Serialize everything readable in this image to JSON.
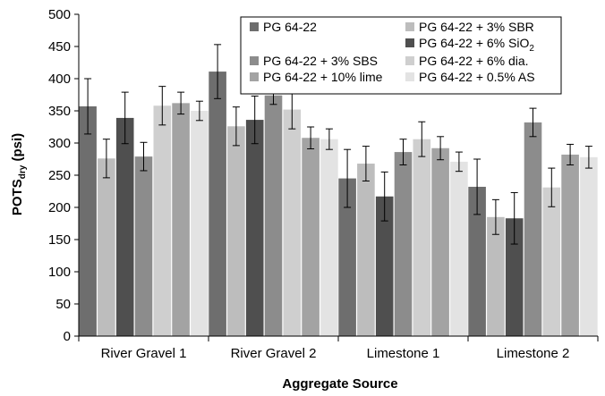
{
  "chart_data": {
    "type": "bar",
    "title": "",
    "xlabel": "Aggregate Source",
    "ylabel": "POTS",
    "ylabel_sub": "dry",
    "ylabel_unit": " (psi)",
    "ylim": [
      0,
      500
    ],
    "yticks": [
      0,
      50,
      100,
      150,
      200,
      250,
      300,
      350,
      400,
      450,
      500
    ],
    "grid": false,
    "legend_position": "top-right",
    "categories": [
      "River Gravel 1",
      "River Gravel 2",
      "Limestone 1",
      "Limestone 2"
    ],
    "series": [
      {
        "name": "PG 64-22",
        "name_main": "PG 64-22",
        "name_sub": "",
        "name_tail": "",
        "color": "#6e6e6e",
        "values": [
          357,
          411,
          245,
          232
        ],
        "error": [
          43,
          42,
          45,
          43
        ]
      },
      {
        "name": "PG 64-22 + 3% SBR",
        "name_main": "PG 64-22 + 3% SBR",
        "name_sub": "",
        "name_tail": "",
        "color": "#bdbdbd",
        "values": [
          276,
          326,
          268,
          185
        ],
        "error": [
          30,
          30,
          27,
          27
        ]
      },
      {
        "name": "PG 64-22 + 6% SiO2",
        "name_main": "PG 64-22 + 6% SiO",
        "name_sub": "2",
        "name_tail": "",
        "color": "#4f4f4f",
        "values": [
          339,
          336,
          217,
          183
        ],
        "error": [
          40,
          37,
          38,
          40
        ]
      },
      {
        "name": "PG 64-22 + 3% SBS",
        "name_main": "PG 64-22 + 3% SBS",
        "name_sub": "",
        "name_tail": "",
        "color": "#8c8c8c",
        "values": [
          279,
          374,
          286,
          332
        ],
        "error": [
          22,
          14,
          20,
          22
        ]
      },
      {
        "name": "PG 64-22 + 6% dia.",
        "name_main": "PG 64-22 + 6% dia.",
        "name_sub": "",
        "name_tail": "",
        "color": "#cfcfcf",
        "values": [
          358,
          352,
          306,
          231
        ],
        "error": [
          30,
          30,
          27,
          30
        ]
      },
      {
        "name": "PG 64-22 + 10% lime",
        "name_main": "PG 64-22 + 10% lime",
        "name_sub": "",
        "name_tail": "",
        "color": "#a3a3a3",
        "values": [
          362,
          308,
          292,
          282
        ],
        "error": [
          17,
          17,
          18,
          16
        ]
      },
      {
        "name": "PG 64-22 + 0.5% AS",
        "name_main": "PG 64-22 + 0.5% AS",
        "name_sub": "",
        "name_tail": "",
        "color": "#e3e3e3",
        "values": [
          350,
          306,
          271,
          278
        ],
        "error": [
          15,
          16,
          15,
          17
        ]
      }
    ]
  }
}
